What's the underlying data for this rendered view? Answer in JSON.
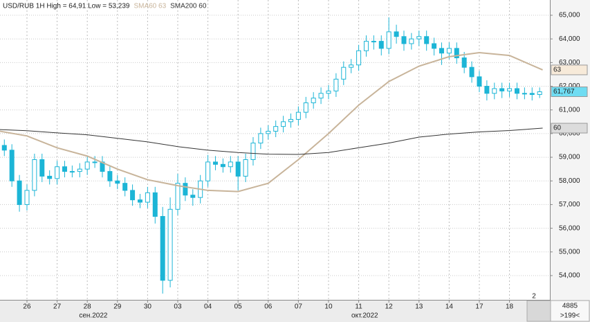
{
  "chart_data": {
    "type": "candlestick",
    "title": "USD/RUB 1H High = 64,91 Low = 53,239",
    "indicator_labels": [
      {
        "text": "SMA60 63",
        "color": "#c8b49a"
      },
      {
        "text": "SMA200 60",
        "color": "#333333"
      }
    ],
    "x": [
      -0.75,
      -0.5,
      -0.25,
      0,
      0.25,
      0.5,
      0.75,
      1,
      1.25,
      1.5,
      1.75,
      2,
      2.25,
      2.5,
      2.75,
      3,
      3.25,
      3.5,
      3.75,
      4,
      4.25,
      4.5,
      4.75,
      5,
      5.25,
      5.5,
      5.75,
      6,
      6.25,
      6.5,
      6.75,
      7,
      7.25,
      7.5,
      7.75,
      8,
      8.25,
      8.5,
      8.75,
      9,
      9.25,
      9.5,
      9.75,
      10,
      10.25,
      10.5,
      10.75,
      11,
      11.25,
      11.5,
      11.75,
      12,
      12.25,
      12.5,
      12.75,
      13,
      13.25,
      13.5,
      13.75,
      14,
      14.25,
      14.5,
      14.75,
      15,
      15.25,
      15.5,
      15.75,
      16,
      16.25,
      16.5,
      16.75,
      17
    ],
    "open": [
      59.5,
      59.3,
      58.0,
      57.0,
      57.6,
      58.9,
      58.2,
      58.1,
      58.6,
      58.4,
      58.4,
      58.5,
      58.8,
      58.8,
      58.4,
      58.0,
      57.9,
      57.6,
      57.2,
      57.1,
      57.5,
      56.5,
      53.8,
      56.8,
      57.9,
      57.4,
      57.3,
      58.0,
      58.8,
      58.7,
      58.6,
      58.8,
      58.2,
      58.9,
      59.6,
      60.0,
      60.1,
      60.3,
      60.5,
      60.6,
      60.9,
      61.3,
      61.5,
      61.7,
      61.8,
      62.3,
      62.8,
      62.9,
      63.5,
      63.9,
      63.9,
      63.6,
      64.3,
      64.1,
      63.8,
      64.0,
      64.1,
      63.8,
      63.6,
      63.4,
      63.6,
      63.2,
      62.8,
      62.4,
      62.0,
      61.7,
      61.9,
      61.8,
      61.9,
      61.7,
      61.7,
      61.65
    ],
    "high": [
      59.75,
      59.55,
      58.25,
      57.85,
      59.15,
      59.15,
      58.45,
      58.85,
      58.85,
      58.65,
      58.75,
      59.05,
      59.05,
      59.05,
      58.65,
      58.25,
      58.15,
      57.85,
      57.45,
      57.75,
      57.75,
      56.9,
      57.3,
      58.3,
      58.15,
      57.65,
      58.25,
      59.1,
      59.05,
      58.95,
      59.05,
      59.05,
      59.15,
      59.85,
      60.25,
      60.35,
      60.55,
      60.75,
      60.85,
      61.15,
      61.55,
      61.75,
      61.95,
      62.05,
      62.55,
      63.05,
      63.15,
      63.75,
      64.15,
      64.15,
      64.15,
      64.91,
      64.6,
      64.35,
      64.25,
      64.35,
      64.35,
      64.05,
      63.85,
      63.85,
      63.85,
      63.45,
      63.05,
      62.65,
      62.25,
      62.15,
      62.15,
      62.15,
      62.15,
      61.95,
      61.95,
      61.95
    ],
    "low": [
      59.05,
      57.75,
      56.7,
      56.75,
      57.35,
      57.95,
      57.85,
      57.85,
      58.15,
      58.15,
      58.15,
      58.25,
      58.55,
      58.15,
      57.75,
      57.65,
      57.35,
      56.95,
      56.85,
      56.85,
      56.2,
      53.239,
      53.5,
      56.55,
      57.15,
      56.95,
      57.05,
      57.75,
      58.45,
      58.35,
      58.35,
      57.6,
      57.95,
      58.65,
      59.35,
      59.75,
      59.85,
      60.05,
      60.25,
      60.35,
      60.65,
      61.05,
      61.25,
      61.45,
      61.55,
      62.05,
      62.55,
      62.65,
      63.25,
      63.55,
      63.3,
      63.35,
      63.8,
      63.5,
      63.55,
      63.7,
      63.5,
      63.3,
      62.9,
      63.15,
      62.95,
      62.55,
      62.15,
      61.75,
      61.4,
      61.45,
      61.5,
      61.55,
      61.45,
      61.45,
      61.4,
      61.5
    ],
    "close": [
      59.3,
      58.0,
      57.0,
      57.6,
      58.9,
      58.2,
      58.1,
      58.6,
      58.4,
      58.4,
      58.5,
      58.8,
      58.8,
      58.4,
      58.0,
      57.9,
      57.6,
      57.2,
      57.1,
      57.5,
      56.5,
      53.8,
      56.8,
      57.9,
      57.4,
      57.3,
      58.0,
      58.8,
      58.7,
      58.6,
      58.8,
      58.2,
      58.9,
      59.6,
      60.0,
      60.1,
      60.3,
      60.5,
      60.6,
      60.9,
      61.3,
      61.5,
      61.7,
      61.8,
      62.3,
      62.8,
      62.9,
      63.5,
      63.9,
      63.9,
      63.6,
      64.3,
      64.1,
      63.8,
      64.0,
      64.1,
      63.8,
      63.6,
      63.4,
      63.6,
      63.2,
      62.8,
      62.4,
      62.0,
      61.7,
      61.9,
      61.8,
      61.9,
      61.7,
      61.7,
      61.65,
      61.767
    ],
    "up_color": "#ffffff",
    "down_color": "#1cb5d6",
    "candle_color": "#1cb5d6",
    "series": [
      {
        "name": "SMA60",
        "color": "#c8b49a",
        "x": [
          -0.9,
          0,
          1,
          2,
          3,
          4,
          5,
          6,
          7,
          8,
          9,
          10,
          11,
          12,
          13,
          14,
          15,
          16,
          17.1
        ],
        "values": [
          60.1,
          59.9,
          59.4,
          59.05,
          58.5,
          58.05,
          57.8,
          57.6,
          57.55,
          57.9,
          58.9,
          60.0,
          61.2,
          62.2,
          62.85,
          63.25,
          63.42,
          63.3,
          62.69
        ]
      },
      {
        "name": "SMA200",
        "color": "#333333",
        "x": [
          -0.9,
          0,
          1,
          2,
          3,
          4,
          5,
          6,
          7,
          8,
          9,
          10,
          11,
          12,
          13,
          14,
          15,
          16,
          17.1
        ],
        "values": [
          60.17,
          60.12,
          60.03,
          59.95,
          59.8,
          59.65,
          59.45,
          59.3,
          59.2,
          59.13,
          59.12,
          59.2,
          59.4,
          59.6,
          59.85,
          59.98,
          60.07,
          60.13,
          60.23
        ]
      }
    ],
    "price_markers": [
      {
        "value": 62.69,
        "label": "63",
        "color": "#f7ead9"
      },
      {
        "value": 61.767,
        "label": "61,767",
        "color": "#6fdcf2"
      },
      {
        "value": 60.23,
        "label": "60",
        "color": "#dcdcdc"
      }
    ],
    "xlim": [
      -0.894,
      17.34
    ],
    "xticks": [
      {
        "value": 0,
        "label": "26"
      },
      {
        "value": 1,
        "label": "27"
      },
      {
        "value": 2,
        "label": "28"
      },
      {
        "value": 3,
        "label": "29"
      },
      {
        "value": 4,
        "label": "30"
      },
      {
        "value": 5,
        "label": "03"
      },
      {
        "value": 6,
        "label": "04"
      },
      {
        "value": 7,
        "label": "05"
      },
      {
        "value": 8,
        "label": "06"
      },
      {
        "value": 9,
        "label": "07"
      },
      {
        "value": 10,
        "label": "10"
      },
      {
        "value": 11,
        "label": "11"
      },
      {
        "value": 12,
        "label": "12"
      },
      {
        "value": 13,
        "label": "13"
      },
      {
        "value": 14,
        "label": "14"
      },
      {
        "value": 15,
        "label": "17"
      },
      {
        "value": 16,
        "label": "18"
      }
    ],
    "month_ticks": [
      {
        "value": 2.2,
        "label": "сен.2022"
      },
      {
        "value": 11.2,
        "label": "окт.2022"
      }
    ],
    "ylim": [
      52.975,
      65.644
    ],
    "yticks": [
      {
        "value": 54,
        "label": "54,000"
      },
      {
        "value": 55,
        "label": "55,000"
      },
      {
        "value": 56,
        "label": "56,000"
      },
      {
        "value": 57,
        "label": "57,000"
      },
      {
        "value": 58,
        "label": "58,000"
      },
      {
        "value": 59,
        "label": "59,000"
      },
      {
        "value": 60,
        "label": "60,000"
      },
      {
        "value": 61,
        "label": "61,000"
      },
      {
        "value": 62,
        "label": "62,000"
      },
      {
        "value": 63,
        "label": "63,000"
      },
      {
        "value": 64,
        "label": "64,000"
      },
      {
        "value": 65,
        "label": "65,000"
      }
    ],
    "grid": true,
    "corner_labels": [
      "2",
      "4885",
      ">199<"
    ]
  }
}
